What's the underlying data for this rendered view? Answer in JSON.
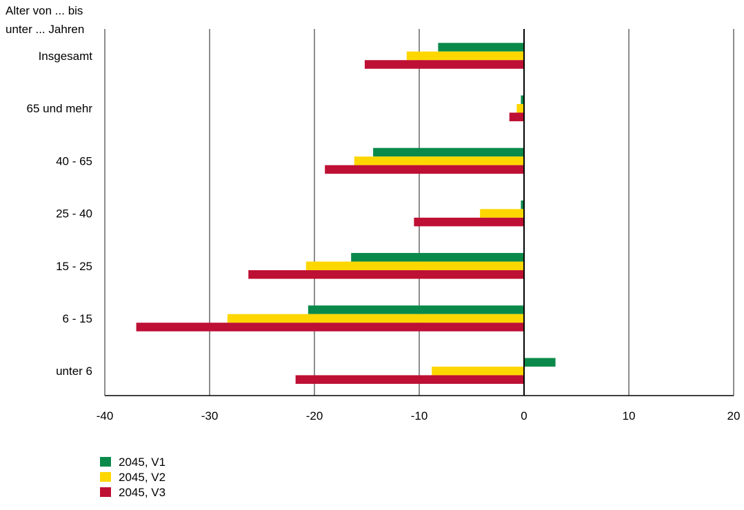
{
  "chart_data": {
    "type": "bar",
    "orientation": "horizontal",
    "ylabel_lines": [
      "Alter von ... bis",
      "unter ... Jahren"
    ],
    "categories": [
      "Insgesamt",
      "65 und mehr",
      "40 - 65",
      "25 - 40",
      "15 - 25",
      "6 - 15",
      "unter 6"
    ],
    "series": [
      {
        "name": "2045, V1",
        "color": "#0a8a4a",
        "values": [
          -8.2,
          -0.3,
          -14.4,
          -0.3,
          -16.5,
          -20.6,
          3.0
        ]
      },
      {
        "name": "2045, V2",
        "color": "#ffd700",
        "values": [
          -11.2,
          -0.7,
          -16.2,
          -4.2,
          -20.8,
          -28.3,
          -8.8
        ]
      },
      {
        "name": "2045, V3",
        "color": "#be0f34",
        "values": [
          -15.2,
          -1.4,
          -19.0,
          -10.5,
          -26.3,
          -37.0,
          -21.8
        ]
      }
    ],
    "xlim": [
      -40,
      20
    ],
    "xticks": [
      "-40",
      "-30",
      "-20",
      "-10",
      "0",
      "10",
      "20"
    ],
    "grid": true,
    "legend_position": "bottom-left"
  }
}
